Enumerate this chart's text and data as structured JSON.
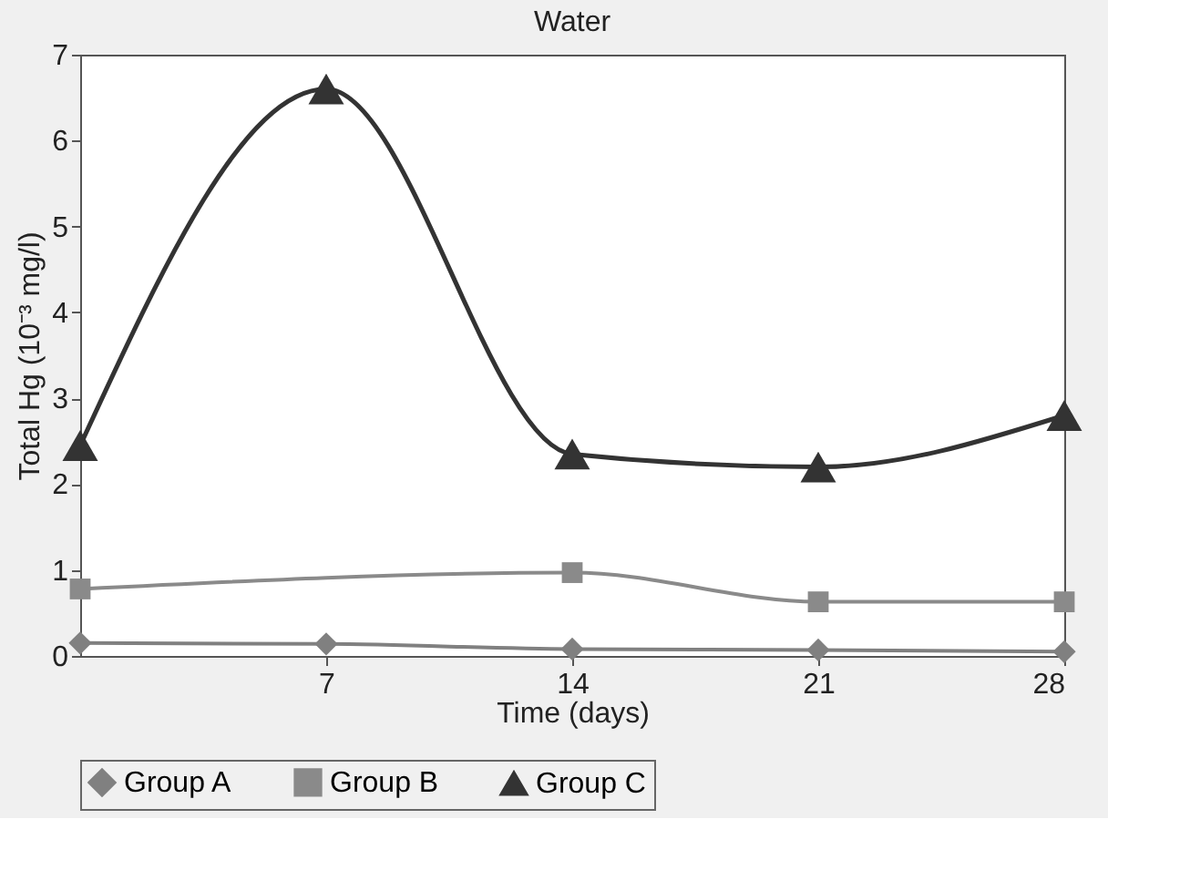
{
  "chart_data": {
    "type": "line",
    "title": "Water",
    "xlabel": "Time (days)",
    "ylabel": "Total Hg (10⁻³ mg/l)",
    "xlim": [
      0,
      28
    ],
    "xticks": [
      7,
      14,
      21,
      28
    ],
    "ylim": [
      0,
      7
    ],
    "yticks": [
      0,
      1,
      2,
      3,
      4,
      5,
      6,
      7
    ],
    "grid": false,
    "legend": "bottom",
    "series": [
      {
        "name": "Group A",
        "color": "#808080",
        "marker": "diamond",
        "x": [
          0,
          7,
          14,
          21,
          28
        ],
        "values": [
          0.15,
          0.14,
          0.08,
          0.07,
          0.05
        ]
      },
      {
        "name": "Group B",
        "color": "#8a8a8a",
        "marker": "square",
        "x": [
          0,
          14,
          21,
          28
        ],
        "values": [
          0.78,
          0.97,
          0.63,
          0.63
        ]
      },
      {
        "name": "Group C",
        "color": "#333333",
        "marker": "triangle",
        "x": [
          0,
          7,
          14,
          21,
          28
        ],
        "values": [
          2.45,
          6.6,
          2.35,
          2.2,
          2.8
        ]
      }
    ]
  }
}
